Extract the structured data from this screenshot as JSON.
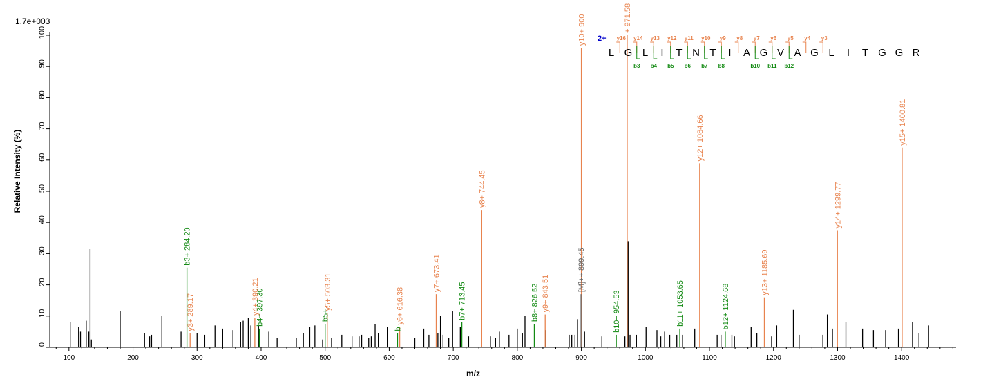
{
  "chart_data": {
    "type": "bar",
    "scale_label": "1.7e+003",
    "xlabel": "m/z",
    "ylabel": "Relative  Intensity (%)",
    "xlim": [
      70,
      1485
    ],
    "ylim": [
      0,
      100
    ],
    "x_ticks": [
      100,
      200,
      300,
      400,
      500,
      600,
      700,
      800,
      900,
      1000,
      1100,
      1200,
      1300,
      1400
    ],
    "y_ticks": [
      0,
      10,
      20,
      30,
      40,
      50,
      60,
      70,
      80,
      90,
      100
    ],
    "grid": false,
    "colors": {
      "b": "#138a13",
      "y": "#e8834e",
      "other": "#000000",
      "precursor": "#666666",
      "charge": "#0000cc"
    },
    "series": [
      {
        "name": "unannotated",
        "points": [
          [
            102,
            8
          ],
          [
            115,
            6.5
          ],
          [
            118,
            5
          ],
          [
            127,
            8.5
          ],
          [
            131,
            5
          ],
          [
            133,
            31.5
          ],
          [
            135,
            2.5
          ],
          [
            180,
            11.5
          ],
          [
            218,
            4.5
          ],
          [
            226,
            3.5
          ],
          [
            229,
            4
          ],
          [
            245,
            10
          ],
          [
            275,
            5
          ],
          [
            300,
            4.5
          ],
          [
            312,
            4
          ],
          [
            328,
            7
          ],
          [
            340,
            6
          ],
          [
            356,
            5.5
          ],
          [
            368,
            8
          ],
          [
            372,
            8.5
          ],
          [
            380,
            9.5
          ],
          [
            384,
            7
          ],
          [
            396,
            7
          ],
          [
            412,
            5
          ],
          [
            425,
            3
          ],
          [
            455,
            3
          ],
          [
            466,
            4.5
          ],
          [
            476,
            6.5
          ],
          [
            484,
            7
          ],
          [
            496,
            2.5
          ],
          [
            510,
            3
          ],
          [
            526,
            4
          ],
          [
            542,
            3.5
          ],
          [
            553,
            3.5
          ],
          [
            557,
            4
          ],
          [
            568,
            3
          ],
          [
            572,
            3.5
          ],
          [
            578,
            7.5
          ],
          [
            583,
            4.5
          ],
          [
            597,
            6.5
          ],
          [
            640,
            3
          ],
          [
            654,
            6
          ],
          [
            662,
            4
          ],
          [
            676,
            4.5
          ],
          [
            680,
            10
          ],
          [
            684,
            4
          ],
          [
            693,
            3
          ],
          [
            699,
            11.5
          ],
          [
            711,
            6.5
          ],
          [
            724,
            3.5
          ],
          [
            758,
            3.5
          ],
          [
            766,
            3
          ],
          [
            772,
            5
          ],
          [
            787,
            4
          ],
          [
            800,
            6
          ],
          [
            808,
            4.5
          ],
          [
            812,
            10
          ],
          [
            844,
            5.5
          ],
          [
            881,
            4
          ],
          [
            885,
            4
          ],
          [
            890,
            4
          ],
          [
            894,
            9
          ],
          [
            900,
            6
          ],
          [
            905,
            5
          ],
          [
            932,
            3.5
          ],
          [
            968,
            3.5
          ],
          [
            973,
            34
          ],
          [
            976,
            4
          ],
          [
            986,
            4
          ],
          [
            1001,
            6.5
          ],
          [
            1018,
            5.5
          ],
          [
            1024,
            3.5
          ],
          [
            1030,
            5
          ],
          [
            1038,
            4
          ],
          [
            1049,
            4
          ],
          [
            1058,
            4
          ],
          [
            1077,
            6
          ],
          [
            1112,
            4
          ],
          [
            1118,
            4
          ],
          [
            1135,
            4
          ],
          [
            1139,
            3.5
          ],
          [
            1165,
            6.5
          ],
          [
            1174,
            4.5
          ],
          [
            1197,
            3.5
          ],
          [
            1205,
            7
          ],
          [
            1231,
            12
          ],
          [
            1240,
            4
          ],
          [
            1277,
            4
          ],
          [
            1284,
            10.5
          ],
          [
            1292,
            6
          ],
          [
            1313,
            8
          ],
          [
            1339,
            6
          ],
          [
            1356,
            5.5
          ],
          [
            1375,
            5.5
          ],
          [
            1395,
            6
          ],
          [
            1417,
            8
          ],
          [
            1427,
            4.5
          ],
          [
            1442,
            7
          ]
        ]
      },
      {
        "name": "b",
        "points": [
          {
            "x": 284.2,
            "y": 25.5,
            "label": "b3+ 284.20"
          },
          {
            "x": 397.3,
            "y": 6,
            "label": "b4+ 397.30"
          },
          {
            "x": 500.0,
            "y": 7.5,
            "label": "b5+"
          },
          {
            "x": 613.0,
            "y": 4.5,
            "label": "b"
          },
          {
            "x": 713.45,
            "y": 8,
            "label": "b7+ 713.45"
          },
          {
            "x": 826.52,
            "y": 7.5,
            "label": "b8+ 826.52"
          },
          {
            "x": 954.53,
            "y": 4,
            "label": "b10+ 954.53"
          },
          {
            "x": 1053.65,
            "y": 6,
            "label": "b11+ 1053.65"
          },
          {
            "x": 1124.68,
            "y": 5,
            "label": "b12+ 1124.68"
          }
        ]
      },
      {
        "name": "y",
        "points": [
          {
            "x": 289.17,
            "y": 4.5,
            "label": "y3+ 289.17"
          },
          {
            "x": 390.21,
            "y": 9.5,
            "label": "y4+ 390.21"
          },
          {
            "x": 503.31,
            "y": 11,
            "label": "y5+ 503.31"
          },
          {
            "x": 616.38,
            "y": 6.5,
            "label": "y6+ 616.38"
          },
          {
            "x": 673.41,
            "y": 17,
            "label": "y7+ 673.41"
          },
          {
            "x": 744.45,
            "y": 44,
            "label": "y8+ 744.45"
          },
          {
            "x": 843.51,
            "y": 10.5,
            "label": "y9+ 843.51"
          },
          {
            "x": 900.0,
            "y": 96,
            "label": "y10+ 900"
          },
          {
            "x": 971.58,
            "y": 100,
            "label": "+ 971.58"
          },
          {
            "x": 1084.66,
            "y": 59,
            "label": "y12+ 1084.66"
          },
          {
            "x": 1185.69,
            "y": 16,
            "label": "y13+ 1185.69"
          },
          {
            "x": 1299.77,
            "y": 37.5,
            "label": "y14+ 1299.77"
          },
          {
            "x": 1400.81,
            "y": 64,
            "label": "y15+ 1400.81"
          }
        ]
      },
      {
        "name": "precursor",
        "points": [
          {
            "x": 899.45,
            "y": 17,
            "label": "[M]++ 899.45"
          }
        ]
      }
    ],
    "sequence": {
      "charge": "2+",
      "residues": [
        "L",
        "G",
        "L",
        "I",
        "T",
        "N",
        "T",
        "I",
        "A",
        "G",
        "V",
        "A",
        "G",
        "L",
        "I",
        "T",
        "G",
        "G",
        "R"
      ],
      "y_ions": [
        {
          "after": 1,
          "label": "y16"
        },
        {
          "after": 2,
          "label": "y14"
        },
        {
          "after": 3,
          "label": "y13"
        },
        {
          "after": 4,
          "label": "y12"
        },
        {
          "after": 5,
          "label": "y11"
        },
        {
          "after": 6,
          "label": "y10"
        },
        {
          "after": 7,
          "label": "y9"
        },
        {
          "after": 8,
          "label": "y8"
        },
        {
          "after": 9,
          "label": "y7"
        },
        {
          "after": 10,
          "label": "y6"
        },
        {
          "after": 11,
          "label": "y5"
        },
        {
          "after": 12,
          "label": "y4"
        },
        {
          "after": 13,
          "label": "y3"
        }
      ],
      "b_ions": [
        {
          "after": 2,
          "label": "b3"
        },
        {
          "after": 3,
          "label": "b4"
        },
        {
          "after": 4,
          "label": "b5"
        },
        {
          "after": 5,
          "label": "b6"
        },
        {
          "after": 6,
          "label": "b7"
        },
        {
          "after": 7,
          "label": "b8"
        },
        {
          "after": 9,
          "label": "b10"
        },
        {
          "after": 10,
          "label": "b11"
        },
        {
          "after": 11,
          "label": "b12"
        }
      ]
    }
  }
}
